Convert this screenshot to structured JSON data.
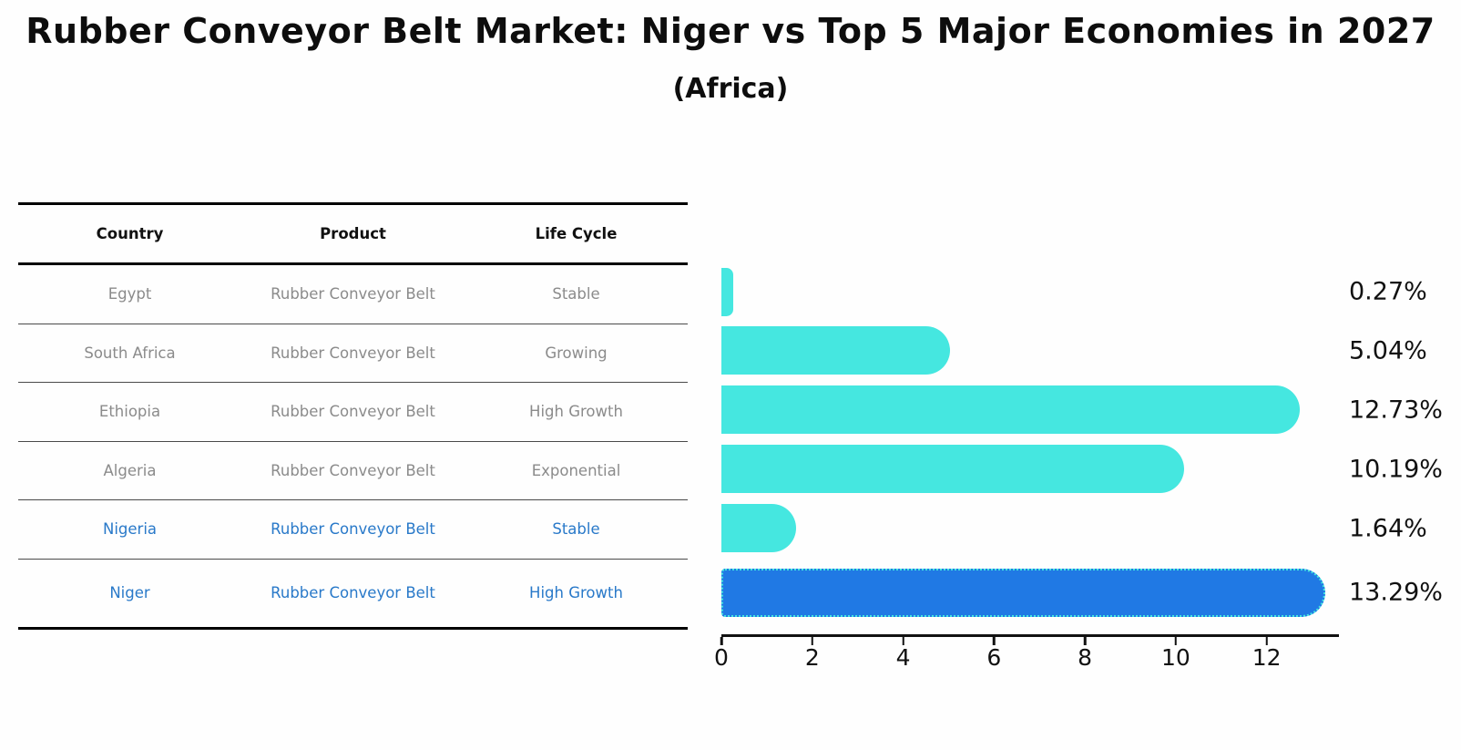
{
  "title": "Rubber Conveyor Belt Market: Niger vs Top 5 Major Economies in 2027",
  "subtitle": "(Africa)",
  "table": {
    "columns": [
      "Country",
      "Product",
      "Life Cycle"
    ],
    "rows": [
      {
        "cells": [
          "Egypt",
          "Rubber Conveyor Belt",
          "Stable"
        ],
        "highlight": false
      },
      {
        "cells": [
          "South Africa",
          "Rubber Conveyor Belt",
          "Growing"
        ],
        "highlight": false
      },
      {
        "cells": [
          "Ethiopia",
          "Rubber Conveyor Belt",
          "High Growth"
        ],
        "highlight": false
      },
      {
        "cells": [
          "Algeria",
          "Rubber Conveyor Belt",
          "Exponential"
        ],
        "highlight": false
      },
      {
        "cells": [
          "Nigeria",
          "Rubber Conveyor Belt",
          "Stable"
        ],
        "highlight": true
      }
    ]
  },
  "chart_data": {
    "type": "bar",
    "orientation": "horizontal",
    "title": "Rubber Conveyor Belt Market: Niger vs Top 5 Major Economies in 2027 (Africa)",
    "categories": [
      "Egypt",
      "South Africa",
      "Ethiopia",
      "Algeria",
      "Nigeria",
      "Niger"
    ],
    "values": [
      0.27,
      5.04,
      12.73,
      10.19,
      1.64,
      13.29
    ],
    "value_labels": [
      "0.27%",
      "5.04%",
      "12.73%",
      "10.19%",
      "1.64%",
      "13.29%"
    ],
    "x_ticks": [
      "0",
      "2",
      "4",
      "6",
      "8",
      "10",
      "12"
    ],
    "x_tick_values": [
      0,
      2,
      4,
      6,
      8,
      10,
      12
    ],
    "xlim": [
      0,
      13.59
    ],
    "grid": false,
    "legend": false,
    "highlight_index": 5,
    "bar_color": "#45e7e0",
    "highlight_bar_color": "#2079e4",
    "highlight_border_color": "#45e7e0"
  },
  "niger_row": {
    "cells": [
      "Niger",
      "Rubber Conveyor Belt",
      "High Growth"
    ],
    "highlight": true
  },
  "colors": {
    "row_text": "#8b8b8b",
    "highlight_text": "#2979c9",
    "header_text": "#111111",
    "axis_text": "#111111",
    "value_text": "#111111"
  }
}
